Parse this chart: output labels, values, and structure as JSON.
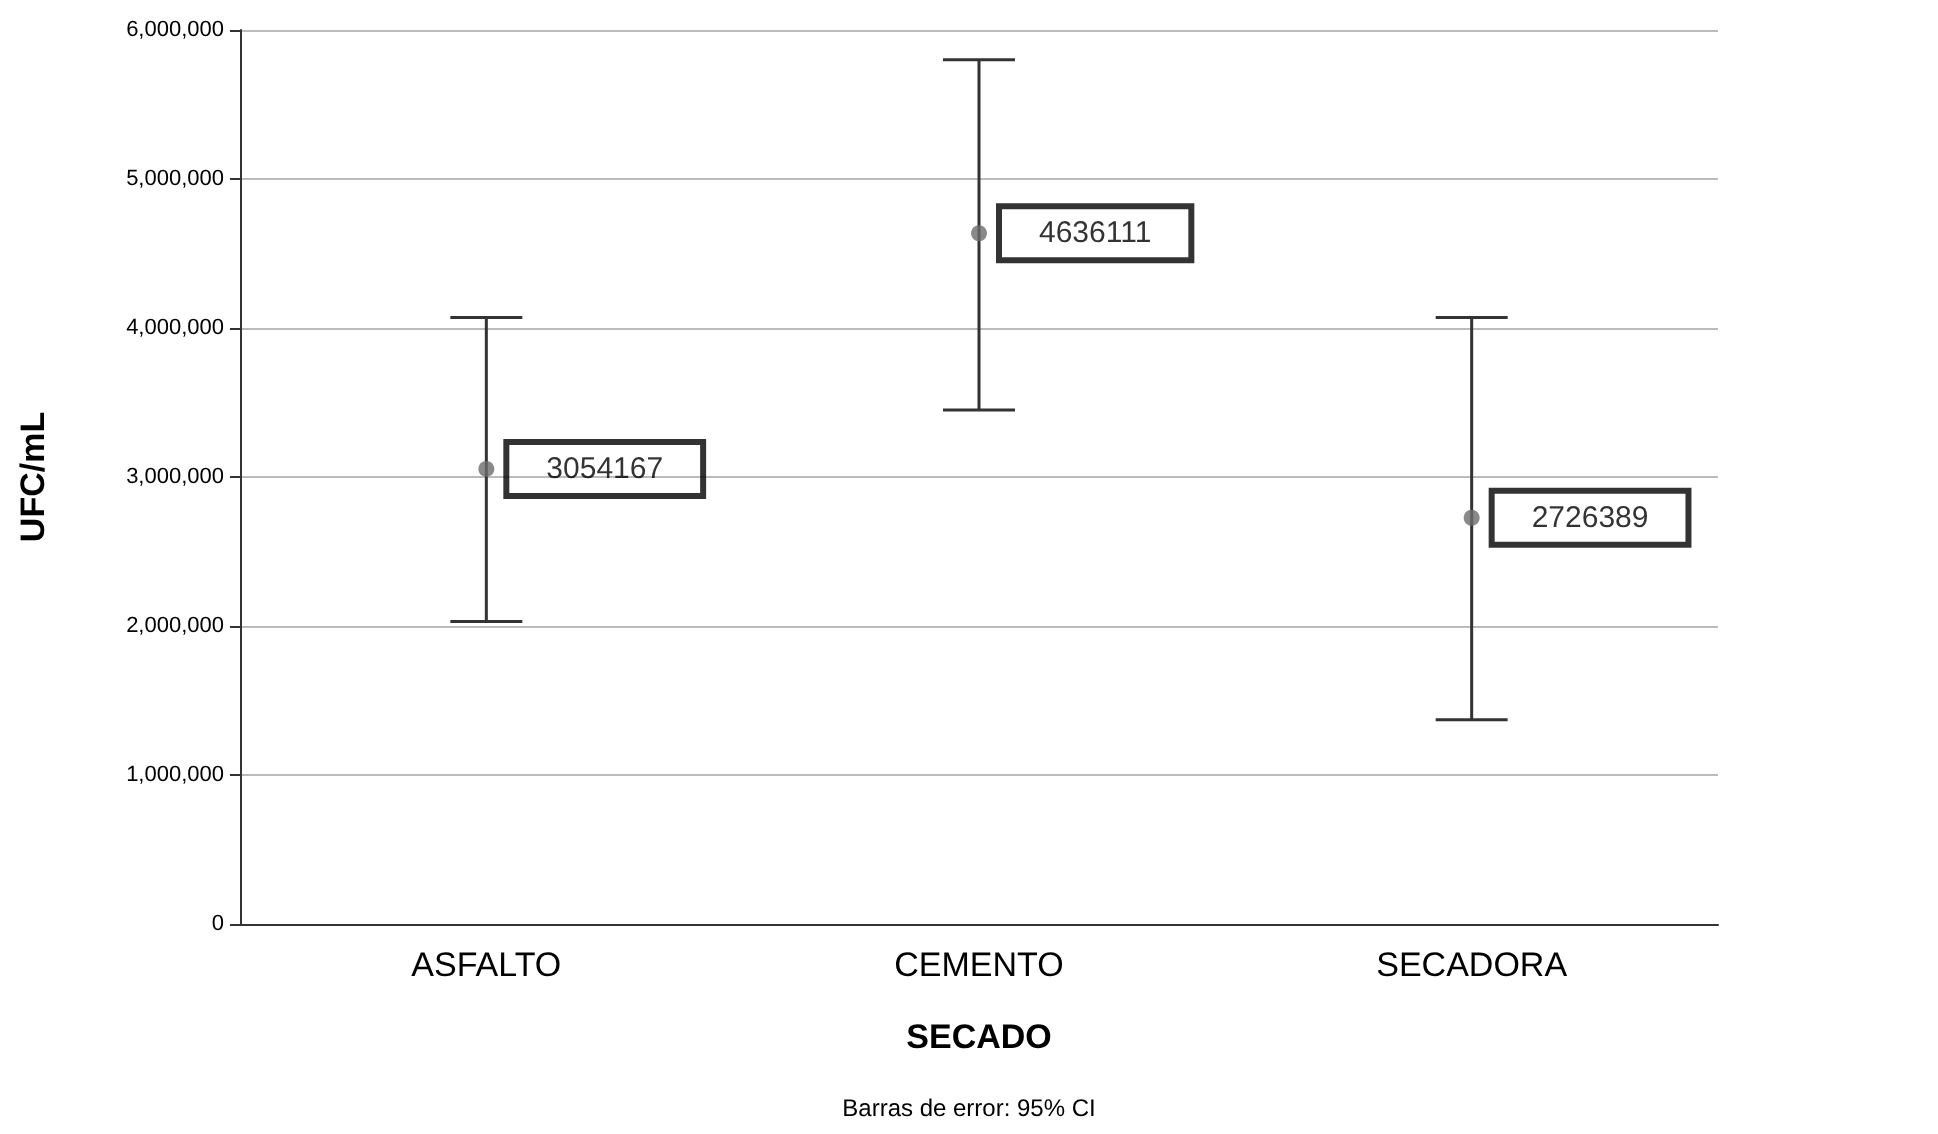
{
  "chart_data": {
    "type": "scatter",
    "xlabel": "SECADO",
    "ylabel": "UFC/mL",
    "categories": [
      "ASFALTO",
      "CEMENTO",
      "SECADORA"
    ],
    "series": [
      {
        "color": "#6b6b6b",
        "values": [
          3054167,
          4636111,
          2726389
        ],
        "errors": [
          [
            2030000,
            4070000
          ],
          [
            3450000,
            5800000
          ],
          [
            1370000,
            4070000
          ]
        ]
      }
    ],
    "ylim": [
      0,
      6000000
    ],
    "yticks": [
      {
        "value": 0,
        "label": "0"
      },
      {
        "value": 1000000,
        "label": "1,000,000"
      },
      {
        "value": 2000000,
        "label": "2,000,000"
      },
      {
        "value": 3000000,
        "label": "3,000,000"
      },
      {
        "value": 4000000,
        "label": "4,000,000"
      },
      {
        "value": 5000000,
        "label": "5,000,000"
      },
      {
        "value": 6000000,
        "label": "6,000,000"
      }
    ],
    "grid": "y",
    "marker": "circle",
    "data_labels": true,
    "annotations": [
      "Barras de error: 95% CI"
    ]
  }
}
